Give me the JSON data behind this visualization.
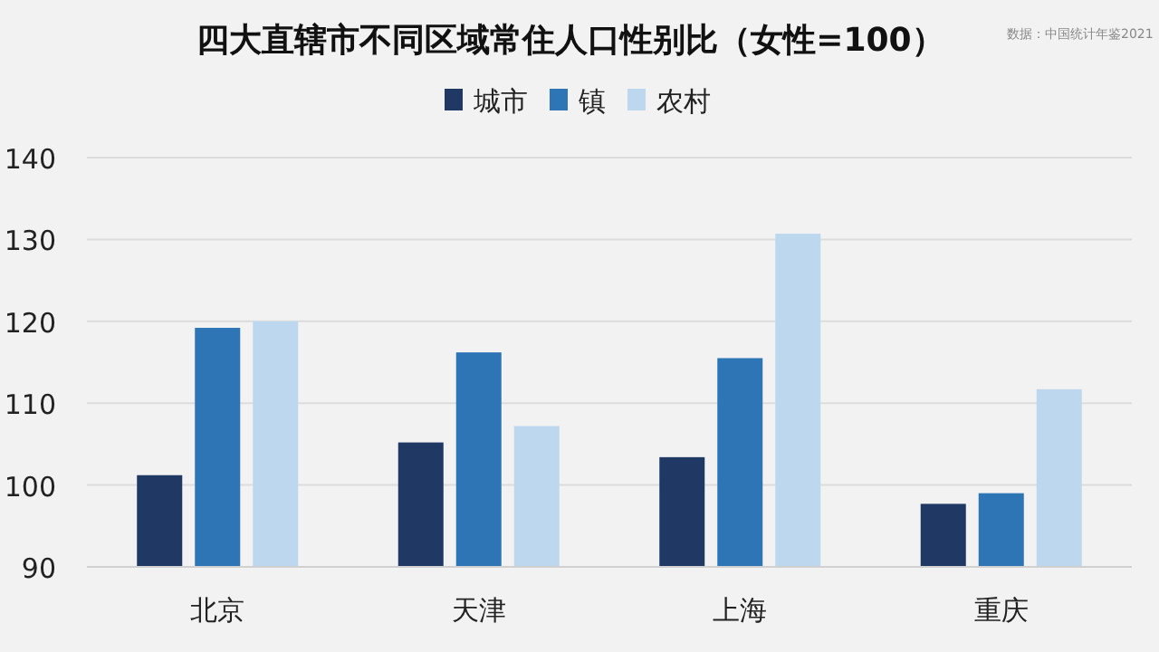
{
  "chart_data": {
    "type": "bar",
    "title": "四大直辖市不同区域常住人口性别比（女性=100）",
    "categories": [
      "北京",
      "天津",
      "上海",
      "重庆"
    ],
    "series": [
      {
        "name": "城市",
        "color": "#1f3864",
        "values": [
          101.2,
          105.2,
          103.4,
          97.7
        ]
      },
      {
        "name": "镇",
        "color": "#2e75b6",
        "values": [
          119.2,
          116.2,
          115.5,
          99.0
        ]
      },
      {
        "name": "农村",
        "color": "#bdd7ee",
        "values": [
          120.0,
          107.2,
          130.7,
          111.7
        ]
      }
    ],
    "ylim": [
      90,
      140
    ],
    "yticks": [
      90,
      100,
      110,
      120,
      130,
      140
    ],
    "grid": "y",
    "legend": "top",
    "annotations": [
      "数据：中国统计年鉴2021"
    ]
  }
}
